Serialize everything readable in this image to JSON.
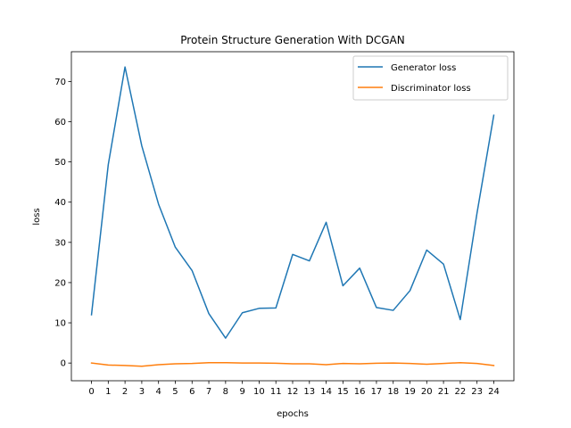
{
  "chart_data": {
    "type": "line",
    "title": "Protein Structure Generation With DCGAN",
    "xlabel": "epochs",
    "ylabel": "loss",
    "x": [
      0,
      1,
      2,
      3,
      4,
      5,
      6,
      7,
      8,
      9,
      10,
      11,
      12,
      13,
      14,
      15,
      16,
      17,
      18,
      19,
      20,
      21,
      22,
      23,
      24
    ],
    "xlim": [
      -1.2,
      25.2
    ],
    "ylim": [
      -4.4,
      77.4
    ],
    "yticks": [
      0,
      10,
      20,
      30,
      40,
      50,
      60,
      70
    ],
    "grid": false,
    "legend_position": "top-right",
    "series": [
      {
        "name": "Generator loss",
        "color": "#1f77b4",
        "values": [
          12.0,
          49.3,
          73.6,
          54.0,
          39.5,
          28.8,
          23.0,
          12.3,
          6.2,
          12.5,
          13.6,
          13.7,
          27.0,
          25.4,
          35.0,
          19.2,
          23.6,
          13.8,
          13.1,
          18.0,
          28.1,
          24.6,
          10.8,
          37.3,
          61.6
        ]
      },
      {
        "name": "Discriminator loss",
        "color": "#ff7f0e",
        "values": [
          0.0,
          -0.5,
          -0.6,
          -0.8,
          -0.4,
          -0.2,
          -0.1,
          0.1,
          0.1,
          0.0,
          0.0,
          -0.05,
          -0.2,
          -0.2,
          -0.4,
          -0.1,
          -0.2,
          -0.05,
          0.0,
          -0.1,
          -0.3,
          -0.1,
          0.1,
          -0.1,
          -0.6
        ]
      }
    ]
  }
}
